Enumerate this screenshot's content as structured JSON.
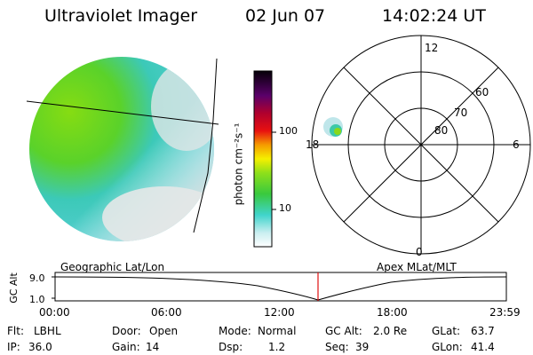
{
  "header": {
    "title": "Ultraviolet Imager",
    "date": "02 Jun 07",
    "time": "14:02:24 UT"
  },
  "colorbar": {
    "unit_label": "photon cm⁻²s⁻¹",
    "ticks": [
      "100",
      "10"
    ]
  },
  "polar_plot": {
    "mlt_labels": [
      "12",
      "18",
      "6",
      "0"
    ],
    "lat_labels": [
      "60",
      "70",
      "80"
    ]
  },
  "timeline": {
    "left_label": "Geographic Lat/Lon",
    "right_label": "Apex MLat/MLT",
    "axis_label": "GC Alt",
    "y_ticks": [
      "9.0",
      "1.0"
    ],
    "x_ticks": [
      "00:00",
      "06:00",
      "12:00",
      "18:00",
      "23:59"
    ],
    "marker_time": "14:02:24",
    "marker_color": "#e01010"
  },
  "status": {
    "flt_label": "Flt:",
    "flt_value": "LBHL",
    "ip_label": "IP:",
    "ip_value": "36.0",
    "door_label": "Door:",
    "door_value": "Open",
    "gain_label": "Gain:",
    "gain_value": "14",
    "mode_label": "Mode:",
    "mode_value": "Normal",
    "dsp_label": "Dsp:",
    "dsp_value": "1.2",
    "gcalt_label": "GC Alt:",
    "gcalt_value": "2.0 Re",
    "seq_label": "Seq:",
    "seq_value": "39",
    "glat_label": "GLat:",
    "glat_value": "63.7",
    "glon_label": "GLon:",
    "glon_value": "41.4"
  },
  "colors": {
    "accent_green": "#7fdc1e",
    "accent_cyan": "#3ad2c8",
    "dim_gray": "#d8dcdc"
  }
}
